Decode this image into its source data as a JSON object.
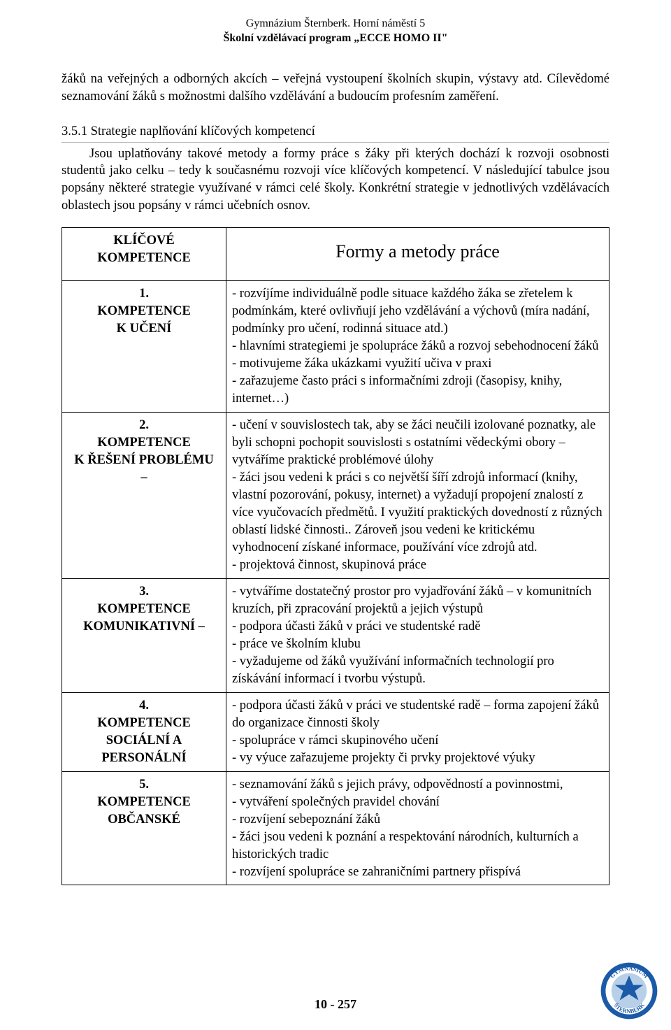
{
  "header": {
    "line1": "Gymnázium Šternberk. Horní náměstí 5",
    "line2": "Školní vzdělávací program „ECCE HOMO II\""
  },
  "intro_paragraph": "žáků na veřejných a odborných akcích – veřejná vystoupení školních skupin, výstavy atd. Cílevědomé seznamování žáků s možnostmi dalšího vzdělávání a budoucím profesním zaměření.",
  "section": {
    "number": "3.5.1",
    "title": "Strategie naplňování klíčových kompetencí",
    "body": "Jsou uplatňovány takové metody a formy práce s žáky při kterých dochází k rozvoji osobnosti studentů jako celku – tedy k současnému rozvoji více klíčových kompetencí. V následující tabulce jsou popsány některé strategie využívané v rámci celé školy. Konkrétní strategie v jednotlivých vzdělávacích oblastech jsou popsány v rámci učebních osnov."
  },
  "table": {
    "header_left_line1": "KLÍČOVÉ",
    "header_left_line2": "KOMPETENCE",
    "header_right": "Formy a metody práce",
    "rows": [
      {
        "num": "1.",
        "name_lines": [
          "KOMPETENCE",
          "K UČENÍ"
        ],
        "right": "- rozvíjíme individuálně podle situace každého žáka se zřetelem k podmínkám, které ovlivňují jeho vzdělávání a výchovů (míra nadání, podmínky pro učení, rodinná situace atd.)\n- hlavními strategiemi je spolupráce žáků a rozvoj sebehodnocení žáků\n- motivujeme žáka ukázkami využití učiva v praxi\n- zařazujeme často práci s informačními zdroji (časopisy, knihy, internet…)"
      },
      {
        "num": "2.",
        "name_lines": [
          "KOMPETENCE",
          "K ŘEŠENÍ PROBLÉMU",
          "–"
        ],
        "right": "- učení v souvislostech tak, aby se žáci neučili izolované poznatky, ale byli schopni pochopit souvislosti s ostatními vědeckými obory – vytváříme praktické problémové úlohy\n- žáci jsou vedeni k práci s co největší šíří zdrojů informací (knihy, vlastní pozorování, pokusy, internet) a vyžadují propojení znalostí z více vyučovacích předmětů. I využití praktických dovedností z různých oblastí lidské činnosti.. Zároveň jsou vedeni ke kritickému vyhodnocení získané informace, používání více zdrojů atd.\n- projektová činnost, skupinová práce"
      },
      {
        "num": "3.",
        "name_lines": [
          "KOMPETENCE",
          "KOMUNIKATIVNÍ –"
        ],
        "right": "- vytváříme dostatečný prostor pro vyjadřování žáků – v komunitních kruzích, při zpracování projektů a jejich výstupů\n- podpora účasti žáků v práci ve studentské radě\n- práce ve školním klubu\n- vyžadujeme od žáků využívání informačních technologií pro získávání informací i tvorbu výstupů."
      },
      {
        "num": "4.",
        "name_lines": [
          "KOMPETENCE",
          "SOCIÁLNÍ A",
          "PERSONÁLNÍ"
        ],
        "right": "- podpora účasti žáků v práci ve studentské radě – forma zapojení žáků do organizace činnosti školy\n- spolupráce v rámci skupinového učení\n- vy výuce zařazujeme projekty či prvky projektové výuky"
      },
      {
        "num": "5.",
        "name_lines": [
          "KOMPETENCE",
          "OBČANSKÉ"
        ],
        "right": "- seznamování žáků s jejich právy, odpovědností a povinnostmi,\n- vytváření společných pravidel chování\n- rozvíjení sebepoznání žáků\n- žáci jsou vedeni k poznání a respektování národních, kulturních a historických tradic\n- rozvíjení spolupráce se zahraničními partnery přispívá"
      }
    ]
  },
  "footer": "10 - 257",
  "logo": {
    "outer_ring_color": "#1a5aa8",
    "mid_ring_color": "#ffffff",
    "inner_color": "#b8cfe8",
    "text_color": "#1a5aa8",
    "top_text": "GYMNASIUM",
    "bottom_text": "ŠTERNBERK"
  }
}
